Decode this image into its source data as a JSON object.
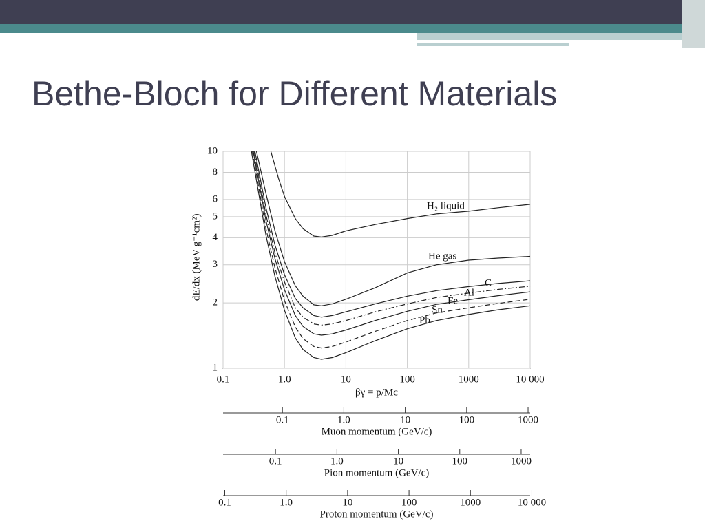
{
  "slide_title": "Bethe-Bloch for Different Materials",
  "chart_data": {
    "type": "line",
    "y_label": "−dE/dx (MeV g⁻¹cm²)",
    "x_label": "βγ = p/Mc",
    "log_x": true,
    "log_y": true,
    "grid": true,
    "xlim": [
      0.1,
      10000
    ],
    "ylim": [
      1,
      10
    ],
    "xticks": [
      0.1,
      {
        "value": 1,
        "label": "1.0"
      },
      10,
      100,
      1000,
      {
        "value": 10000,
        "label": "10 000"
      }
    ],
    "yticks": [
      1,
      2,
      3,
      4,
      5,
      6,
      8,
      10
    ],
    "series": [
      {
        "name": "H₂ liquid",
        "color": "#222222",
        "dash": "solid",
        "x": [
          0.6,
          0.8,
          1,
          1.5,
          2,
          3,
          4,
          6,
          10,
          30,
          100,
          300,
          1000,
          3000,
          10000
        ],
        "values": [
          10,
          7.5,
          6.2,
          4.9,
          4.4,
          4.07,
          4.03,
          4.1,
          4.3,
          4.6,
          4.9,
          5.15,
          5.3,
          5.5,
          5.7
        ]
      },
      {
        "name": "He gas",
        "color": "#222222",
        "dash": "solid",
        "x": [
          0.35,
          0.5,
          0.7,
          1,
          1.5,
          2,
          3,
          4,
          6,
          10,
          30,
          100,
          300,
          1000,
          3000,
          10000
        ],
        "values": [
          10,
          6.4,
          4.3,
          3.1,
          2.4,
          2.15,
          1.96,
          1.94,
          1.98,
          2.08,
          2.35,
          2.75,
          3.0,
          3.15,
          3.22,
          3.28
        ]
      },
      {
        "name": "C",
        "color": "#222222",
        "dash": "solid",
        "x": [
          0.33,
          0.5,
          0.7,
          1,
          1.5,
          2,
          3,
          4,
          6,
          10,
          30,
          100,
          300,
          1000,
          3000,
          10000
        ],
        "values": [
          10,
          5.5,
          3.7,
          2.7,
          2.1,
          1.9,
          1.75,
          1.72,
          1.75,
          1.82,
          1.98,
          2.15,
          2.28,
          2.38,
          2.46,
          2.53
        ]
      },
      {
        "name": "Al",
        "color": "#222222",
        "dash": "dashdot",
        "x": [
          0.32,
          0.5,
          0.7,
          1,
          1.5,
          2,
          3,
          4,
          6,
          10,
          30,
          100,
          300,
          1000,
          3000,
          10000
        ],
        "values": [
          10,
          5.1,
          3.4,
          2.5,
          1.9,
          1.72,
          1.6,
          1.58,
          1.6,
          1.66,
          1.82,
          1.98,
          2.12,
          2.22,
          2.31,
          2.39
        ]
      },
      {
        "name": "Fe",
        "color": "#222222",
        "dash": "solid",
        "x": [
          0.31,
          0.5,
          0.7,
          1,
          1.5,
          2,
          3,
          4,
          6,
          10,
          30,
          100,
          300,
          1000,
          3000,
          10000
        ],
        "values": [
          10,
          4.8,
          3.2,
          2.3,
          1.75,
          1.56,
          1.44,
          1.42,
          1.44,
          1.5,
          1.66,
          1.83,
          1.97,
          2.07,
          2.16,
          2.25
        ]
      },
      {
        "name": "Sn",
        "color": "#222222",
        "dash": "dashed",
        "x": [
          0.3,
          0.5,
          0.7,
          1,
          1.5,
          2,
          3,
          4,
          6,
          10,
          30,
          100,
          300,
          1000,
          3000,
          10000
        ],
        "values": [
          10,
          4.4,
          2.9,
          2.05,
          1.55,
          1.37,
          1.26,
          1.24,
          1.26,
          1.32,
          1.48,
          1.66,
          1.8,
          1.9,
          1.99,
          2.08
        ]
      },
      {
        "name": "Pb",
        "color": "#222222",
        "dash": "solid",
        "x": [
          0.29,
          0.5,
          0.7,
          1,
          1.5,
          2,
          3,
          4,
          6,
          10,
          30,
          100,
          300,
          1000,
          3000,
          10000
        ],
        "values": [
          10,
          4.1,
          2.65,
          1.85,
          1.38,
          1.22,
          1.12,
          1.1,
          1.12,
          1.18,
          1.34,
          1.52,
          1.66,
          1.77,
          1.86,
          1.94
        ]
      }
    ],
    "secondary_axes": [
      {
        "label": "Muon momentum (GeV/c)",
        "xlim": [
          0.0108,
          1080
        ],
        "xticks": [
          0.1,
          {
            "value": 1,
            "label": "1.0"
          },
          10,
          100,
          1000
        ]
      },
      {
        "label": "Pion momentum (GeV/c)",
        "xlim": [
          0.014,
          1400
        ],
        "xticks": [
          0.1,
          {
            "value": 1,
            "label": "1.0"
          },
          10,
          100,
          1000
        ]
      },
      {
        "label": "Proton momentum (GeV/c)",
        "xlim": [
          0.0938,
          9380
        ],
        "xticks": [
          0.1,
          {
            "value": 1,
            "label": "1.0"
          },
          10,
          100,
          1000,
          {
            "value": 10000,
            "label": "10 000"
          }
        ]
      }
    ]
  }
}
